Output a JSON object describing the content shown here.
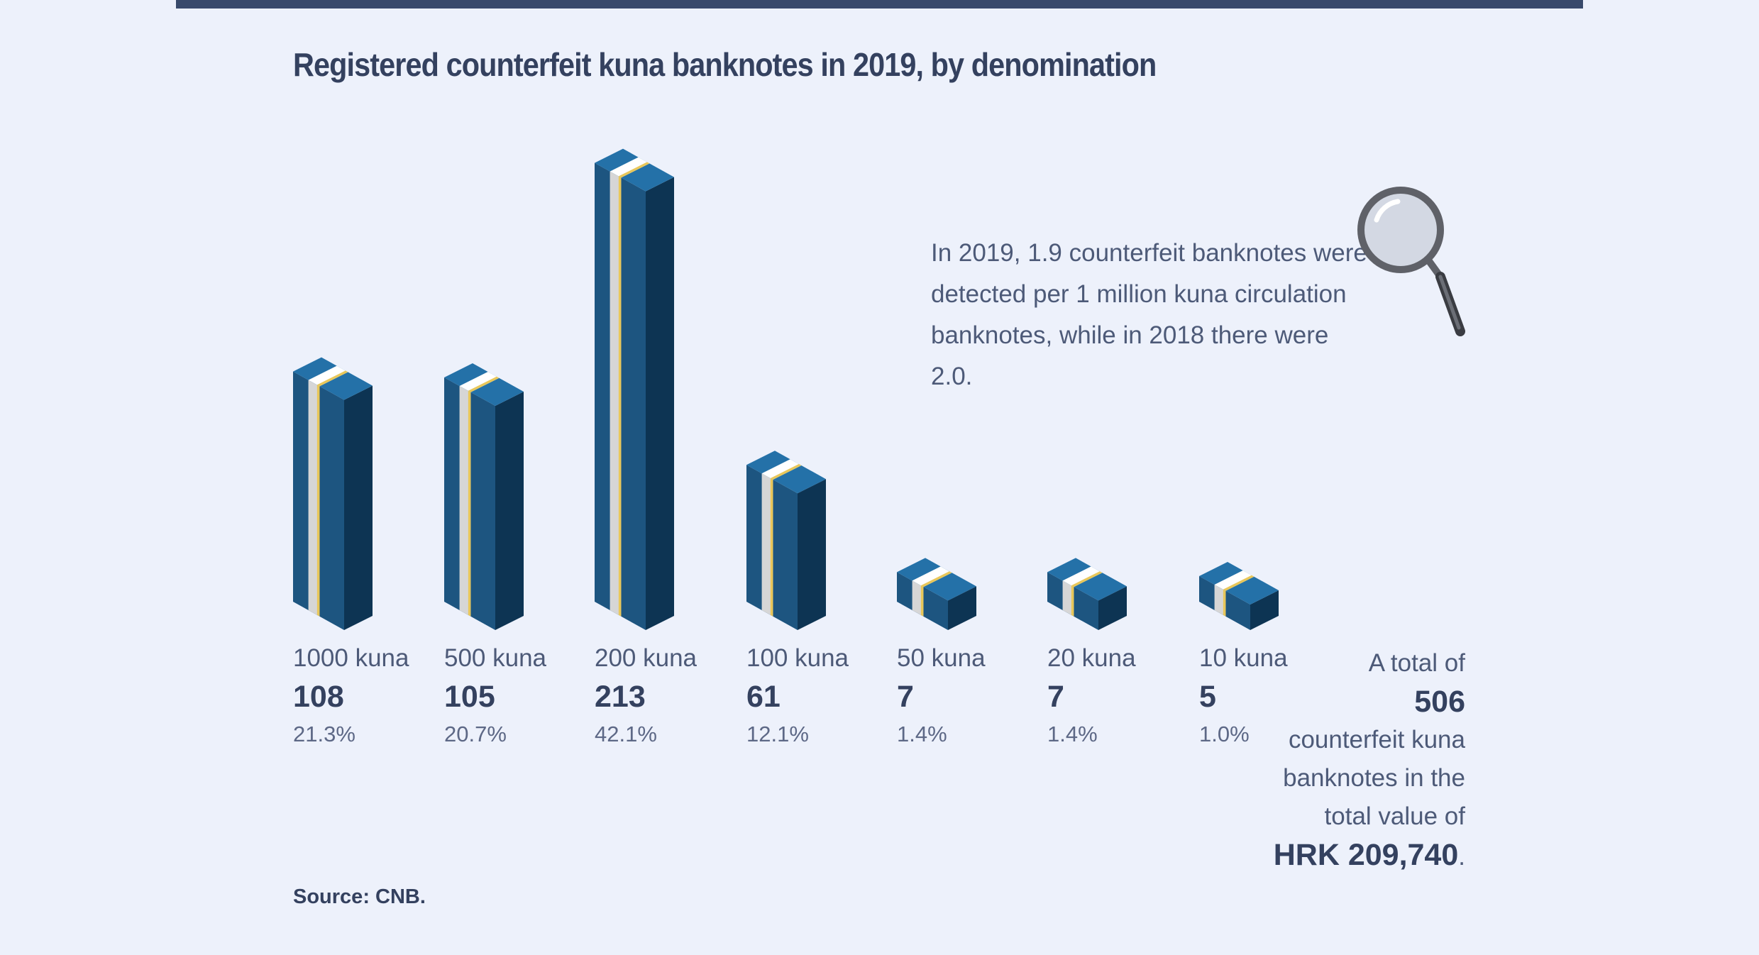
{
  "title": "Registered counterfeit kuna banknotes in 2019, by denomination",
  "note": "In 2019, 1.9 counterfeit banknotes were detected per 1 million kuna circulation banknotes, while in 2018 there were 2.0.",
  "total": {
    "prefix": "A total of",
    "count": "506",
    "middle": "counterfeit kuna banknotes in the total value of",
    "value": "HRK 209,740",
    "suffix": "."
  },
  "source": "Source: CNB.",
  "colors": {
    "front": "#1d5580",
    "side": "#0d3453",
    "top": "#2471a8",
    "band": "#d6d6d6",
    "stripe": "#e8c75a",
    "text_dark": "#34415f"
  },
  "chart_data": {
    "type": "bar",
    "categories": [
      "1000 kuna",
      "500 kuna",
      "200 kuna",
      "100 kuna",
      "50 kuna",
      "20 kuna",
      "10 kuna"
    ],
    "values": [
      108,
      105,
      213,
      61,
      7,
      7,
      5
    ],
    "value_labels": [
      "108",
      "105",
      "213",
      "61",
      "7",
      "7",
      "5"
    ],
    "percentages": [
      "21.3%",
      "20.7%",
      "42.1%",
      "12.1%",
      "1.4%",
      "1.4%",
      "1.0%"
    ],
    "title": "Registered counterfeit kuna banknotes in 2019, by denomination"
  }
}
